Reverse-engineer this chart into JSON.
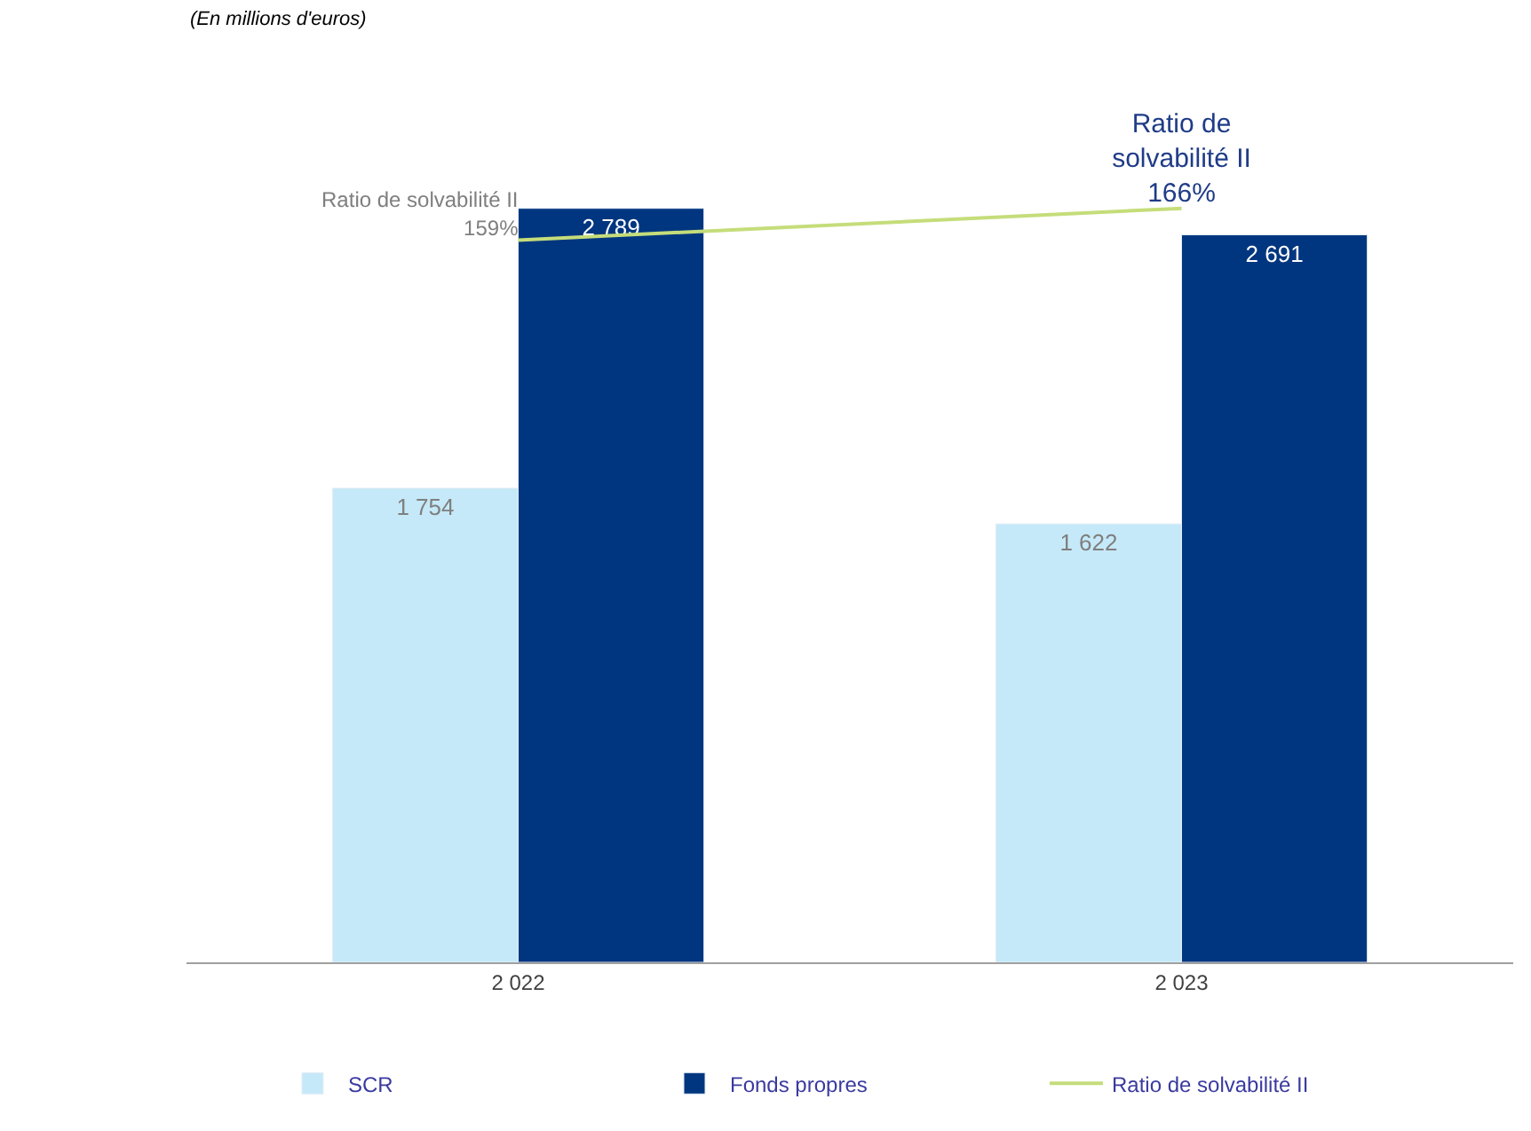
{
  "chart_data": {
    "type": "bar",
    "annotations": [
      "(En millions d'euros)"
    ],
    "categories": [
      "2 022",
      "2 023"
    ],
    "legend": "bottom",
    "tick_labels": "x",
    "series": [
      {
        "name": "SCR",
        "color": "#c5e9f8",
        "values": [
          1754,
          1622
        ],
        "value_labels": [
          "1 754",
          "1 622"
        ]
      },
      {
        "name": "Fonds propres",
        "color": "#00367f",
        "values": [
          2789,
          2691
        ],
        "value_labels": [
          "2 789",
          "2 691"
        ]
      },
      {
        "name": "Ratio de solvabilité II",
        "type": "line",
        "axis": "y2",
        "color": "#c5dd7a",
        "values": [
          159,
          166
        ],
        "value_labels": [
          "Ratio de solvabilité II\n159%",
          "Ratio de\nsolvabilité II\n166%"
        ],
        "marker": "none"
      }
    ]
  }
}
